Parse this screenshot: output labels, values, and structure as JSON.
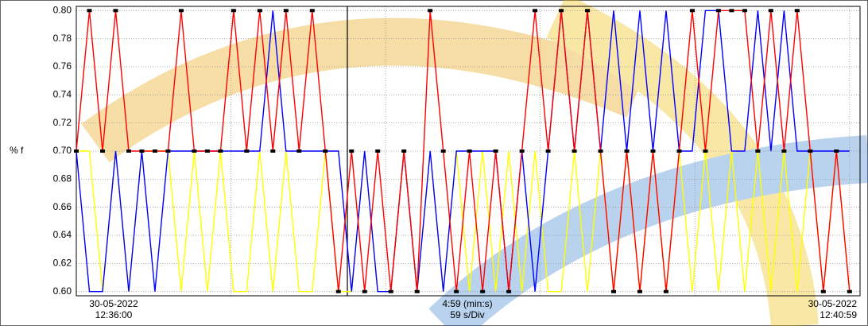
{
  "chart_data": {
    "type": "line",
    "ylabel": "% f",
    "x_labels": {
      "left": [
        "30-05-2022",
        "12:36:00"
      ],
      "center": [
        "4:59 (min:s)",
        "59 s/Div"
      ],
      "right": [
        "30-05-2022",
        "12:40:59"
      ]
    },
    "x": [
      0,
      5,
      10,
      15,
      20,
      25,
      30,
      35,
      40,
      45,
      50,
      55,
      60,
      65,
      70,
      75,
      80,
      85,
      90,
      95,
      100,
      105,
      110,
      115,
      120,
      125,
      130,
      135,
      140,
      145,
      150,
      155,
      160,
      165,
      170,
      175,
      180,
      185,
      190,
      195,
      200,
      205,
      210,
      215,
      220,
      225,
      230,
      235,
      240,
      245,
      250,
      255,
      260,
      265,
      270,
      275,
      280,
      285,
      290,
      295
    ],
    "xlim": [
      0,
      299
    ],
    "xticks": [
      0,
      59,
      118,
      177,
      236,
      295
    ],
    "ylim": [
      0.597,
      0.803
    ],
    "yticks": [
      {
        "value": 0.6,
        "label": "0.60"
      },
      0.62,
      0.64,
      0.66,
      0.68,
      {
        "value": 0.7,
        "label": "0.70"
      },
      0.72,
      0.74,
      0.76,
      0.78,
      {
        "value": 0.8,
        "label": "0.80"
      }
    ],
    "grid": true,
    "series": [
      {
        "color": "#ffff00",
        "values": [
          0.7,
          0.7,
          0.6,
          0.7,
          0.6,
          0.7,
          0.7,
          0.7,
          0.6,
          0.7,
          0.6,
          0.7,
          0.6,
          0.6,
          0.7,
          0.6,
          0.7,
          0.6,
          0.6,
          0.7,
          0.6,
          0.6,
          0.7,
          0.6,
          0.6,
          0.7,
          0.6,
          0.7,
          0.6,
          0.7,
          0.6,
          0.7,
          0.6,
          0.7,
          0.6,
          0.7,
          0.6,
          0.6,
          0.7,
          0.6,
          0.7,
          0.6,
          0.7,
          0.6,
          0.7,
          0.6,
          0.7,
          0.6,
          0.7,
          0.6,
          0.7,
          0.6,
          0.7,
          0.6,
          0.7,
          0.6,
          0.7,
          0.6,
          0.7,
          0.6
        ]
      },
      {
        "color": "#0000ff",
        "values": [
          0.7,
          0.6,
          0.6,
          0.7,
          0.6,
          0.7,
          0.6,
          0.7,
          0.7,
          0.7,
          0.7,
          0.7,
          0.7,
          0.7,
          0.7,
          0.8,
          0.7,
          0.7,
          0.7,
          0.7,
          0.7,
          0.6,
          0.7,
          0.6,
          0.6,
          0.7,
          0.6,
          0.7,
          0.6,
          0.7,
          0.7,
          0.7,
          0.7,
          0.6,
          0.7,
          0.6,
          0.7,
          0.8,
          0.7,
          0.8,
          0.7,
          0.8,
          0.7,
          0.8,
          0.7,
          0.8,
          0.7,
          0.7,
          0.8,
          0.8,
          0.7,
          0.7,
          0.8,
          0.7,
          0.8,
          0.7,
          0.7,
          0.7,
          0.7,
          0.7
        ]
      },
      {
        "color": "#ff0000",
        "markers": true,
        "values": [
          0.7,
          0.8,
          0.7,
          0.8,
          0.7,
          0.7,
          0.7,
          0.7,
          0.8,
          0.7,
          0.7,
          0.7,
          0.8,
          0.7,
          0.8,
          0.7,
          0.8,
          0.7,
          0.8,
          0.7,
          0.6,
          0.7,
          0.6,
          0.7,
          0.6,
          0.7,
          0.6,
          0.8,
          0.7,
          0.6,
          0.7,
          0.6,
          0.7,
          0.6,
          0.7,
          0.8,
          0.7,
          0.8,
          0.7,
          0.8,
          0.7,
          0.6,
          0.7,
          0.6,
          0.7,
          0.6,
          0.7,
          0.8,
          0.7,
          0.8,
          0.8,
          0.8,
          0.7,
          0.8,
          0.7,
          0.8,
          0.7,
          0.6,
          0.7,
          0.6
        ]
      }
    ]
  }
}
